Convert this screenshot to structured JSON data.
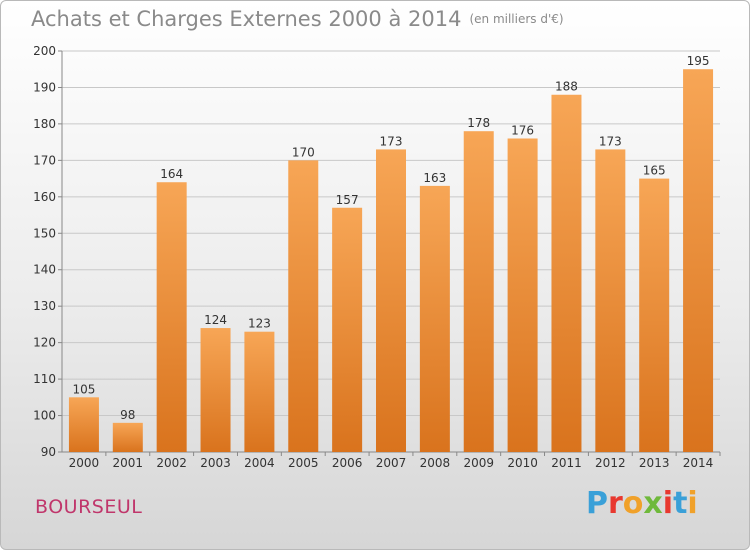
{
  "title": "Achats et Charges Externes 2000 à 2014",
  "subtitle": "(en milliers d'€)",
  "commune": "BOURSEUL",
  "brand": "Proxiti",
  "brand_colors": [
    "#3aa0d8",
    "#e8382f",
    "#f0a12a",
    "#6fb93b",
    "#e8382f",
    "#3aa0d8",
    "#f0a12a"
  ],
  "chart_data": {
    "type": "bar",
    "categories": [
      "2000",
      "2001",
      "2002",
      "2003",
      "2004",
      "2005",
      "2006",
      "2007",
      "2008",
      "2009",
      "2010",
      "2011",
      "2012",
      "2013",
      "2014"
    ],
    "values": [
      105,
      98,
      164,
      124,
      123,
      170,
      157,
      173,
      163,
      178,
      176,
      188,
      173,
      165,
      195
    ],
    "ylim": [
      90,
      200
    ],
    "yticks": [
      90,
      100,
      110,
      120,
      130,
      140,
      150,
      160,
      170,
      180,
      190,
      200
    ],
    "grid": true,
    "bar_color": "#f0973f"
  }
}
